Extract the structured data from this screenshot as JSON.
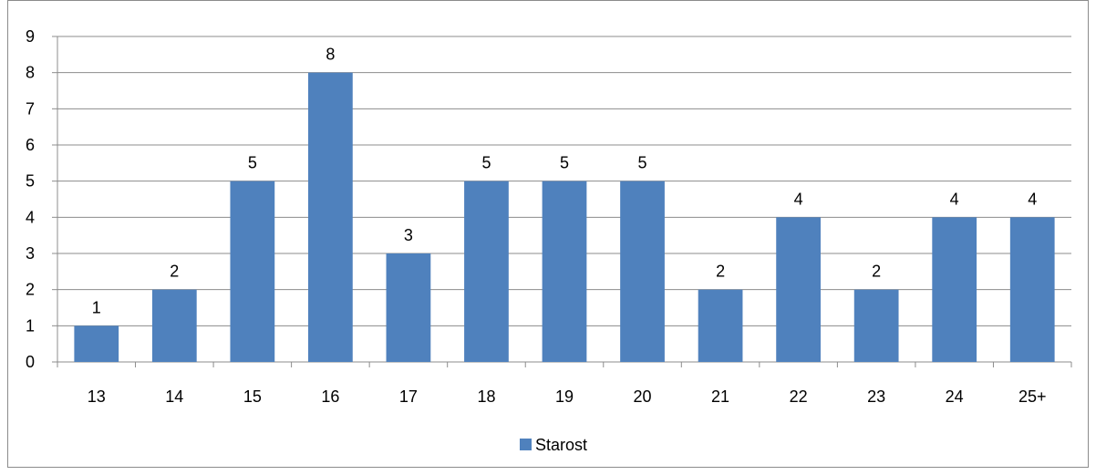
{
  "chart_data": {
    "type": "bar",
    "categories": [
      "13",
      "14",
      "15",
      "16",
      "17",
      "18",
      "19",
      "20",
      "21",
      "22",
      "23",
      "24",
      "25+"
    ],
    "series": [
      {
        "name": "Starost",
        "values": [
          1,
          2,
          5,
          8,
          3,
          5,
          5,
          5,
          2,
          4,
          2,
          4,
          4
        ],
        "color": "#4f81bd"
      }
    ],
    "title": "",
    "xlabel": "",
    "ylabel": "",
    "ylim": [
      0,
      9
    ],
    "yticks": [
      "0",
      "1",
      "2",
      "3",
      "4",
      "5",
      "6",
      "7",
      "8",
      "9"
    ],
    "grid": true,
    "data_labels": true,
    "legend": "bottom"
  },
  "colors": {
    "bar": "#4f81bd",
    "grid": "#8c8c8c",
    "axis": "#8c8c8c",
    "border": "#8c8c8c"
  }
}
